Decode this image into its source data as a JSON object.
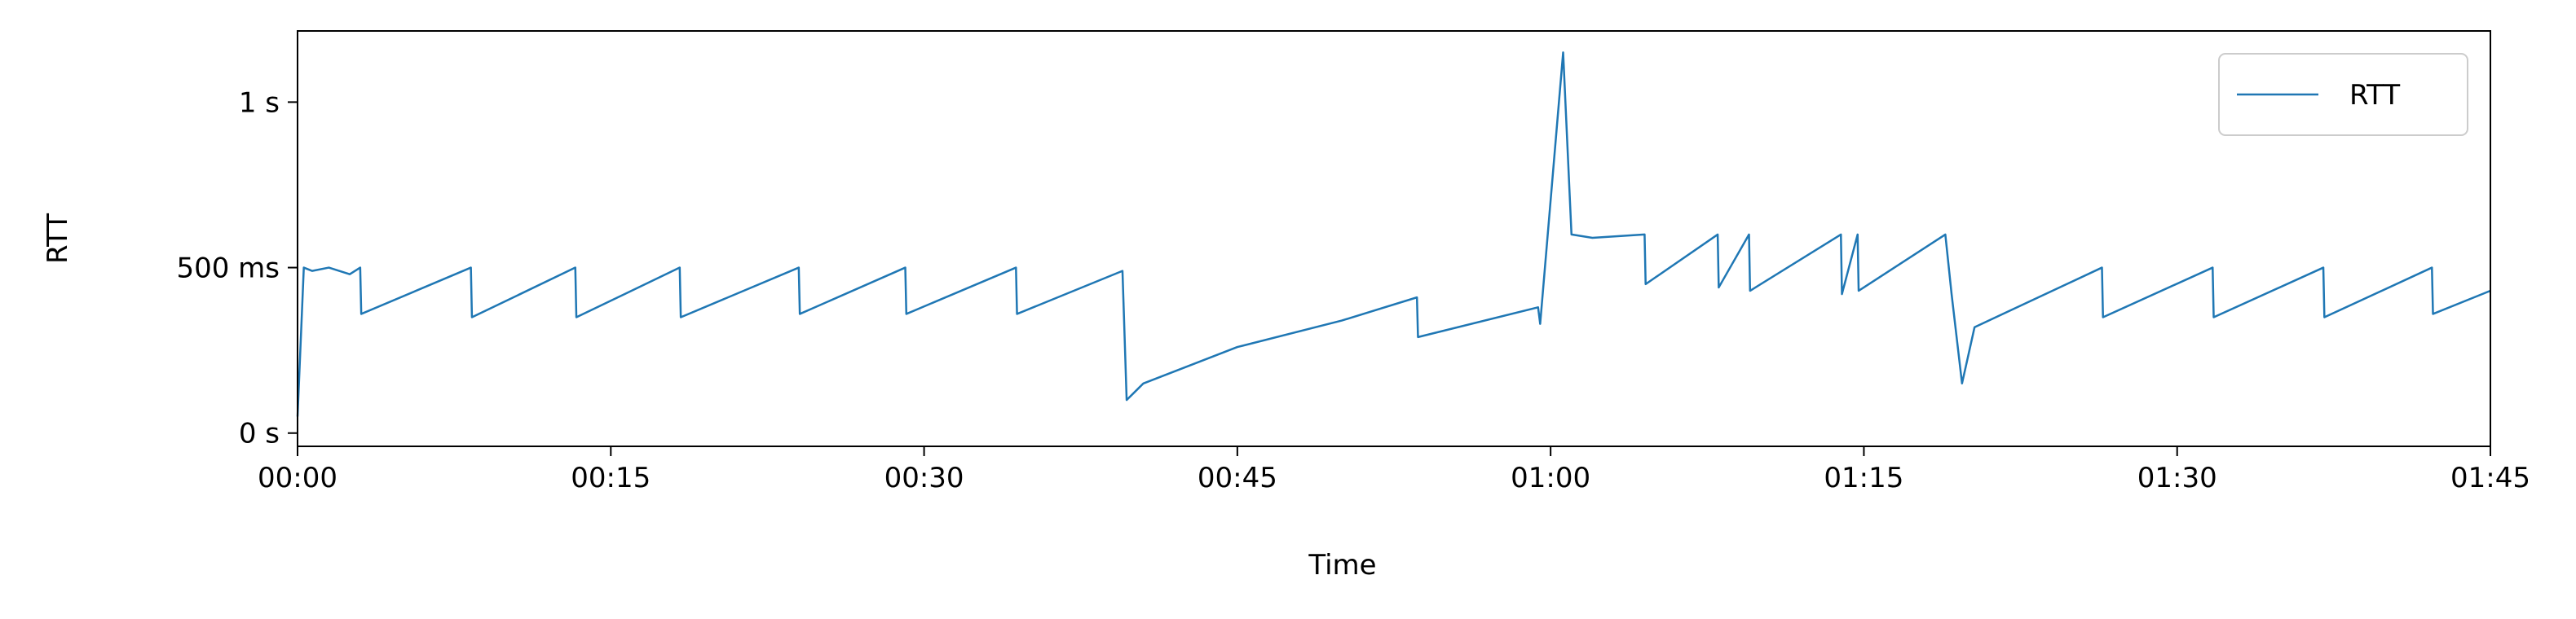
{
  "chart_data": {
    "type": "line",
    "xlabel": "Time",
    "ylabel": "RTT",
    "x": [
      0,
      0.3,
      0.7,
      1.5,
      2.5,
      3.0,
      3.05,
      8.3,
      8.35,
      13.3,
      13.35,
      18.3,
      18.35,
      24.0,
      24.05,
      29.1,
      29.15,
      34.4,
      34.45,
      39.5,
      39.7,
      40.5,
      45,
      50,
      53.6,
      53.65,
      59.4,
      59.5,
      60.6,
      61.0,
      62,
      64.5,
      64.55,
      68,
      68.05,
      69.5,
      69.55,
      73.9,
      73.95,
      74.7,
      74.75,
      78.9,
      79.2,
      79.7,
      80.3,
      86.4,
      86.45,
      91.7,
      91.75,
      97.0,
      97.05,
      102.2,
      102.25,
      105
    ],
    "series": [
      {
        "name": "RTT",
        "color": "#1f77b4",
        "values": [
          50,
          500,
          490,
          500,
          480,
          500,
          360,
          500,
          350,
          500,
          350,
          500,
          350,
          500,
          360,
          500,
          360,
          500,
          360,
          490,
          100,
          150,
          260,
          340,
          410,
          290,
          380,
          330,
          1150,
          600,
          590,
          600,
          450,
          600,
          440,
          600,
          430,
          600,
          420,
          600,
          430,
          600,
          420,
          150,
          320,
          500,
          350,
          500,
          350,
          500,
          350,
          500,
          360,
          430
        ]
      }
    ],
    "xlim": [
      0,
      105
    ],
    "xticks": [
      {
        "value": 0,
        "label": "00:00"
      },
      {
        "value": 15,
        "label": "00:15"
      },
      {
        "value": 30,
        "label": "00:30"
      },
      {
        "value": 45,
        "label": "00:45"
      },
      {
        "value": 60,
        "label": "01:00"
      },
      {
        "value": 75,
        "label": "01:15"
      },
      {
        "value": 90,
        "label": "01:30"
      },
      {
        "value": 105,
        "label": "01:45"
      }
    ],
    "ylim": [
      -40,
      1215
    ],
    "yticks": [
      {
        "value": 0,
        "label": "0 s"
      },
      {
        "value": 500,
        "label": "500 ms"
      },
      {
        "value": 1000,
        "label": "1 s"
      }
    ],
    "legend": "upper right"
  }
}
